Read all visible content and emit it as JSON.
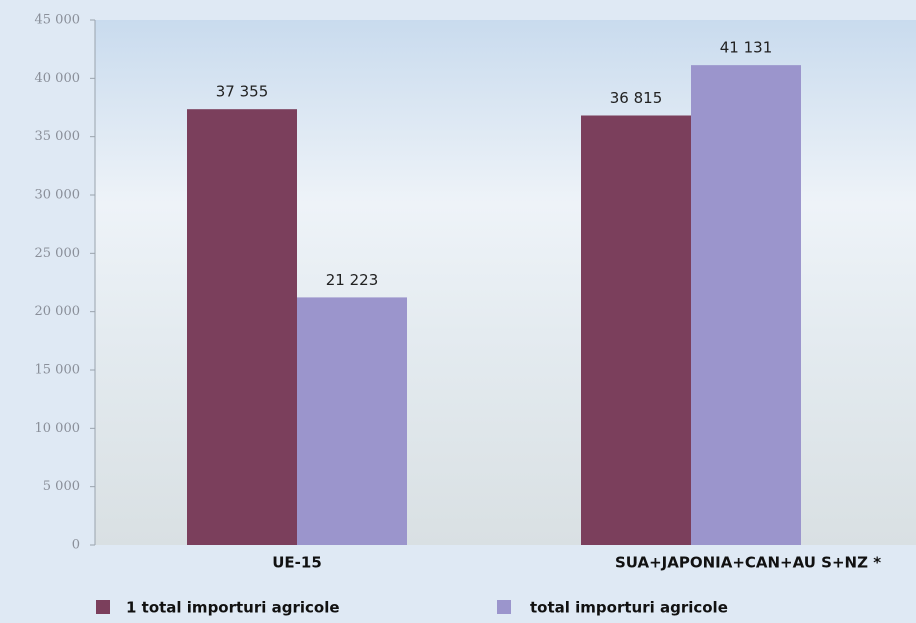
{
  "chart_data": {
    "type": "bar",
    "categories": [
      "UE-15",
      "SUA+JAPONIA+CAN+AU S+NZ *"
    ],
    "series": [
      {
        "name": "1 total importuri agricole",
        "color": "#7b3f5c",
        "values": [
          37355,
          36815
        ],
        "value_labels": [
          "37 355",
          "36 815"
        ]
      },
      {
        "name": "total importuri agricole",
        "color": "#9b95cc",
        "values": [
          21223,
          41131
        ],
        "value_labels": [
          "21 223",
          "41 131"
        ]
      }
    ],
    "ylim": [
      0,
      45000
    ],
    "yticks": [
      0,
      {
        "value": 5000,
        "label": "5 000"
      },
      {
        "value": 10000,
        "label": "10 000"
      },
      {
        "value": 15000,
        "label": "15 000"
      },
      {
        "value": 20000,
        "label": "20 000"
      },
      {
        "value": 25000,
        "label": "25 000"
      },
      {
        "value": 30000,
        "label": "30 000"
      },
      {
        "value": 35000,
        "label": "35 000"
      },
      {
        "value": 40000,
        "label": "40 000"
      },
      {
        "value": 45000,
        "label": "45 000"
      }
    ],
    "grid": false
  }
}
